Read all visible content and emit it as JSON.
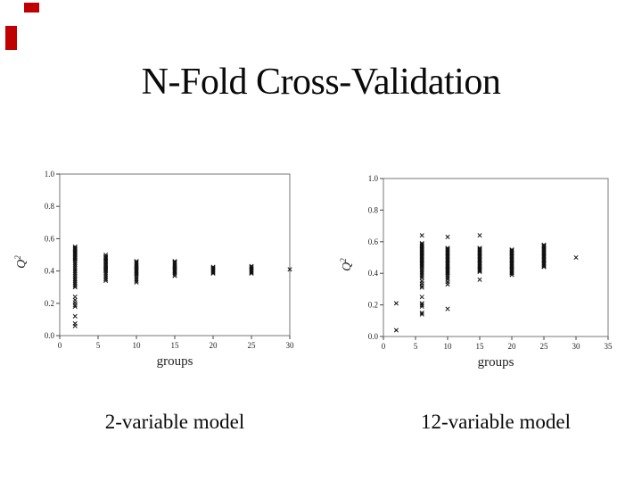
{
  "slide": {
    "title": "N-Fold Cross-Validation",
    "decoration_color": "#c00000"
  },
  "captions": {
    "left": "2-variable model",
    "right": "12-variable model"
  },
  "chart_data": [
    {
      "type": "scatter",
      "name": "2-variable model",
      "marker": "x",
      "marker_color": "#111111",
      "frame_color": "#777777",
      "xlabel": "groups",
      "ylabel": "Q²",
      "xlim": [
        0,
        30
      ],
      "ylim": [
        0.0,
        1.0
      ],
      "xticks": [
        0,
        5,
        10,
        15,
        20,
        25,
        30
      ],
      "ytick_labels": [
        "0.0",
        "0.2",
        "0.4",
        "0.6",
        "0.8",
        "1.0"
      ],
      "grid": false,
      "legend": false,
      "series": [
        {
          "x": 2,
          "y": [
            0.55,
            0.545,
            0.54,
            0.535,
            0.53,
            0.525,
            0.52,
            0.515,
            0.51,
            0.505,
            0.5,
            0.495,
            0.49,
            0.485,
            0.48,
            0.475,
            0.47,
            0.46,
            0.45,
            0.44,
            0.43,
            0.42,
            0.41,
            0.4,
            0.39,
            0.38,
            0.37,
            0.36,
            0.35,
            0.34,
            0.33,
            0.32,
            0.31,
            0.3,
            0.24,
            0.22,
            0.205,
            0.19,
            0.18,
            0.12,
            0.075,
            0.06
          ]
        },
        {
          "x": 6,
          "y": [
            0.5,
            0.49,
            0.485,
            0.48,
            0.475,
            0.47,
            0.465,
            0.46,
            0.455,
            0.45,
            0.445,
            0.44,
            0.435,
            0.43,
            0.425,
            0.42,
            0.415,
            0.41,
            0.405,
            0.4,
            0.39,
            0.38,
            0.37,
            0.36,
            0.35,
            0.34
          ]
        },
        {
          "x": 10,
          "y": [
            0.46,
            0.455,
            0.45,
            0.445,
            0.44,
            0.435,
            0.43,
            0.425,
            0.42,
            0.415,
            0.41,
            0.405,
            0.4,
            0.395,
            0.39,
            0.385,
            0.38,
            0.37,
            0.36,
            0.35,
            0.34,
            0.33
          ]
        },
        {
          "x": 15,
          "y": [
            0.46,
            0.455,
            0.45,
            0.445,
            0.44,
            0.435,
            0.43,
            0.425,
            0.42,
            0.415,
            0.41,
            0.405,
            0.4,
            0.395,
            0.39,
            0.38,
            0.37
          ]
        },
        {
          "x": 20,
          "y": [
            0.425,
            0.42,
            0.415,
            0.41,
            0.405,
            0.4,
            0.395,
            0.39,
            0.385
          ]
        },
        {
          "x": 25,
          "y": [
            0.43,
            0.425,
            0.42,
            0.415,
            0.41,
            0.405,
            0.4,
            0.395,
            0.39,
            0.385
          ]
        },
        {
          "x": 30,
          "y": [
            0.41
          ]
        }
      ]
    },
    {
      "type": "scatter",
      "name": "12-variable model",
      "marker": "x",
      "marker_color": "#111111",
      "frame_color": "#777777",
      "xlabel": "groups",
      "ylabel": "Q²",
      "xlim": [
        0,
        35
      ],
      "ylim": [
        0.0,
        1.0
      ],
      "xticks": [
        0,
        5,
        10,
        15,
        20,
        25,
        30,
        35
      ],
      "ytick_labels": [
        "0.0",
        "0.2",
        "0.4",
        "0.6",
        "0.8",
        "1.0"
      ],
      "grid": false,
      "legend": false,
      "series": [
        {
          "x": 2,
          "y": [
            0.21,
            0.04
          ]
        },
        {
          "x": 6,
          "y": [
            0.64,
            0.59,
            0.585,
            0.58,
            0.575,
            0.57,
            0.565,
            0.56,
            0.555,
            0.55,
            0.545,
            0.54,
            0.535,
            0.53,
            0.525,
            0.52,
            0.515,
            0.51,
            0.505,
            0.5,
            0.495,
            0.49,
            0.485,
            0.48,
            0.475,
            0.47,
            0.465,
            0.46,
            0.455,
            0.45,
            0.445,
            0.44,
            0.43,
            0.42,
            0.41,
            0.4,
            0.39,
            0.38,
            0.37,
            0.35,
            0.335,
            0.32,
            0.31,
            0.25,
            0.21,
            0.2,
            0.19,
            0.15,
            0.14
          ]
        },
        {
          "x": 10,
          "y": [
            0.63,
            0.56,
            0.555,
            0.55,
            0.545,
            0.54,
            0.535,
            0.53,
            0.525,
            0.52,
            0.515,
            0.51,
            0.505,
            0.5,
            0.495,
            0.49,
            0.485,
            0.48,
            0.475,
            0.47,
            0.465,
            0.46,
            0.455,
            0.45,
            0.445,
            0.44,
            0.435,
            0.43,
            0.425,
            0.42,
            0.415,
            0.41,
            0.405,
            0.4,
            0.39,
            0.38,
            0.37,
            0.36,
            0.345,
            0.33,
            0.175
          ]
        },
        {
          "x": 15,
          "y": [
            0.64,
            0.56,
            0.555,
            0.55,
            0.545,
            0.54,
            0.535,
            0.53,
            0.525,
            0.52,
            0.515,
            0.51,
            0.505,
            0.5,
            0.495,
            0.49,
            0.485,
            0.48,
            0.475,
            0.47,
            0.465,
            0.46,
            0.455,
            0.45,
            0.445,
            0.44,
            0.435,
            0.43,
            0.425,
            0.42,
            0.415,
            0.41,
            0.36
          ]
        },
        {
          "x": 20,
          "y": [
            0.55,
            0.545,
            0.54,
            0.535,
            0.53,
            0.525,
            0.52,
            0.515,
            0.51,
            0.505,
            0.5,
            0.495,
            0.49,
            0.485,
            0.48,
            0.475,
            0.47,
            0.465,
            0.46,
            0.455,
            0.45,
            0.445,
            0.44,
            0.435,
            0.43,
            0.425,
            0.42,
            0.415,
            0.41,
            0.405,
            0.4,
            0.39
          ]
        },
        {
          "x": 25,
          "y": [
            0.58,
            0.575,
            0.57,
            0.565,
            0.56,
            0.555,
            0.55,
            0.545,
            0.54,
            0.535,
            0.53,
            0.525,
            0.52,
            0.515,
            0.51,
            0.505,
            0.5,
            0.495,
            0.49,
            0.485,
            0.48,
            0.475,
            0.47,
            0.465,
            0.46,
            0.455,
            0.45,
            0.445,
            0.44
          ]
        },
        {
          "x": 30,
          "y": [
            0.5
          ]
        }
      ]
    }
  ]
}
